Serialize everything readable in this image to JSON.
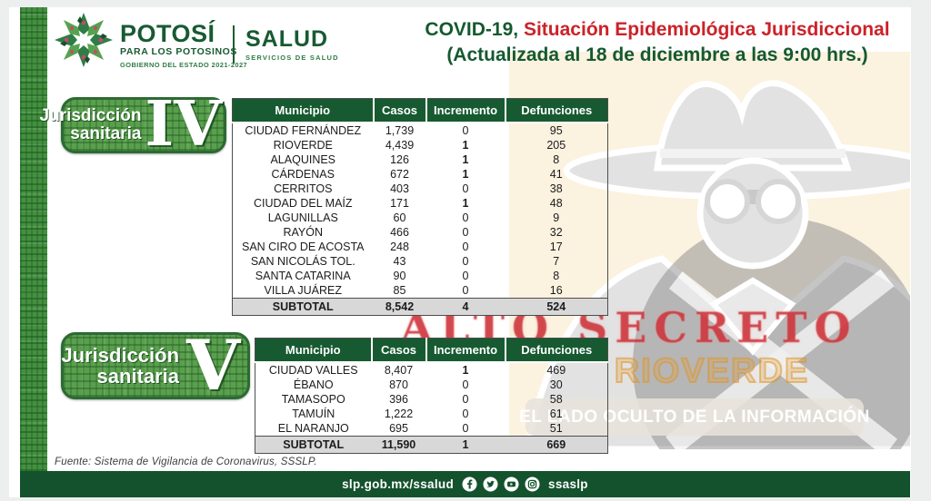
{
  "header": {
    "logo": {
      "potosi": "POTOSÍ",
      "potosi_sub": "PARA LOS POTOSINOS",
      "potosi_sub2": "GOBIERNO DEL ESTADO 2021-2027",
      "salud": "SALUD",
      "salud_sub": "SERVICIOS DE SALUD"
    },
    "title_green_part": "COVID-19,",
    "title_red_part": " Situación Epidemiológica Jurisdiccional",
    "title_line2": "(Actualizada al 18 de diciembre a las 9:00 hrs.)"
  },
  "colors": {
    "dark_green": "#175a31",
    "badge_green": "#5a9f4c",
    "title_red": "#cc2229",
    "cream_bg": "#fbf2e0",
    "subtotal_gray": "#d8d8d8",
    "footer_green": "#14522d"
  },
  "tables": [
    {
      "badge": {
        "line1": "Jurisdicción",
        "line2": "sanitaria",
        "numeral": "IV"
      },
      "columns": [
        "Municipio",
        "Casos",
        "Incremento",
        "Defunciones"
      ],
      "rows": [
        {
          "municipio": "CIUDAD FERNÁNDEZ",
          "casos": "1,739",
          "incremento": "0",
          "defunciones": "95"
        },
        {
          "municipio": "RIOVERDE",
          "casos": "4,439",
          "incremento": "1",
          "defunciones": "205"
        },
        {
          "municipio": "ALAQUINES",
          "casos": "126",
          "incremento": "1",
          "defunciones": "8"
        },
        {
          "municipio": "CÁRDENAS",
          "casos": "672",
          "incremento": "1",
          "defunciones": "41"
        },
        {
          "municipio": "CERRITOS",
          "casos": "403",
          "incremento": "0",
          "defunciones": "38"
        },
        {
          "municipio": "CIUDAD DEL MAÍZ",
          "casos": "171",
          "incremento": "1",
          "defunciones": "48"
        },
        {
          "municipio": "LAGUNILLAS",
          "casos": "60",
          "incremento": "0",
          "defunciones": "9"
        },
        {
          "municipio": "RAYÓN",
          "casos": "466",
          "incremento": "0",
          "defunciones": "32"
        },
        {
          "municipio": "SAN CIRO DE ACOSTA",
          "casos": "248",
          "incremento": "0",
          "defunciones": "17"
        },
        {
          "municipio": "SAN NICOLÁS TOL.",
          "casos": "43",
          "incremento": "0",
          "defunciones": "7"
        },
        {
          "municipio": "SANTA CATARINA",
          "casos": "90",
          "incremento": "0",
          "defunciones": "8"
        },
        {
          "municipio": "VILLA JUÁREZ",
          "casos": "85",
          "incremento": "0",
          "defunciones": "16"
        }
      ],
      "subtotal": {
        "municipio": "SUBTOTAL",
        "casos": "8,542",
        "incremento": "4",
        "defunciones": "524"
      }
    },
    {
      "badge": {
        "line1": "Jurisdicción",
        "line2": "sanitaria",
        "numeral": "V"
      },
      "columns": [
        "Municipio",
        "Casos",
        "Incremento",
        "Defunciones"
      ],
      "rows": [
        {
          "municipio": "CIUDAD VALLES",
          "casos": "8,407",
          "incremento": "1",
          "defunciones": "469"
        },
        {
          "municipio": "ÉBANO",
          "casos": "870",
          "incremento": "0",
          "defunciones": "30"
        },
        {
          "municipio": "TAMASOPO",
          "casos": "396",
          "incremento": "0",
          "defunciones": "58"
        },
        {
          "municipio": "TAMUÍN",
          "casos": "1,222",
          "incremento": "0",
          "defunciones": "61"
        },
        {
          "municipio": "EL NARANJO",
          "casos": "695",
          "incremento": "0",
          "defunciones": "51"
        }
      ],
      "subtotal": {
        "municipio": "SUBTOTAL",
        "casos": "11,590",
        "incremento": "1",
        "defunciones": "669"
      }
    }
  ],
  "watermark": {
    "alto_secreto": "ALTO SECRETO",
    "rioverde": "RIOVERDE",
    "tagline": "EL LADO OCULTO DE LA INFORMACIÓN",
    "figure": "spy-detective-silhouette"
  },
  "footer": {
    "fuente": "Fuente: Sistema de Vigilancia de Coronavirus, SSSLP.",
    "url": "slp.gob.mx/ssalud",
    "social_handle": "ssaslp",
    "icons": [
      "facebook-icon",
      "twitter-icon",
      "youtube-icon",
      "instagram-icon"
    ]
  }
}
